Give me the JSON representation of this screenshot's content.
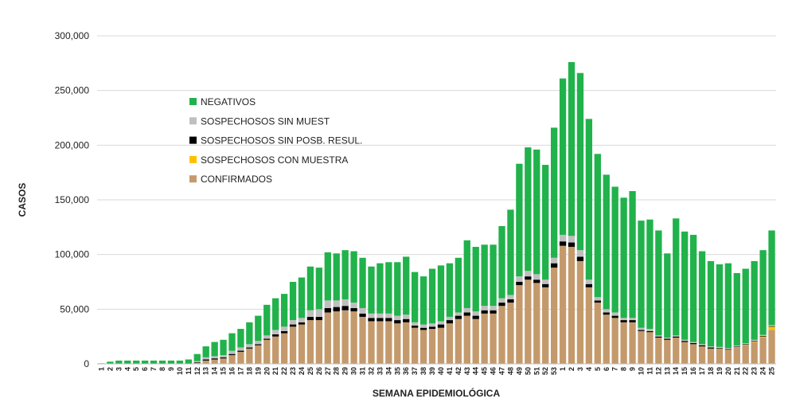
{
  "chart_data": {
    "type": "stacked_bar",
    "x_label": "SEMANA EPIDEMIOLÓGICA",
    "y_label": "CASOS",
    "categories": [
      "1",
      "2",
      "3",
      "4",
      "5",
      "6",
      "7",
      "8",
      "9",
      "10",
      "11",
      "12",
      "13",
      "14",
      "15",
      "16",
      "17",
      "18",
      "19",
      "20",
      "21",
      "22",
      "23",
      "24",
      "25",
      "26",
      "27",
      "28",
      "29",
      "30",
      "31",
      "32",
      "33",
      "34",
      "35",
      "36",
      "37",
      "38",
      "39",
      "40",
      "41",
      "42",
      "43",
      "44",
      "45",
      "46",
      "47",
      "48",
      "49",
      "50",
      "51",
      "52",
      "53",
      "1",
      "2",
      "3",
      "4",
      "5",
      "6",
      "7",
      "8",
      "9",
      "10",
      "11",
      "12",
      "13",
      "14",
      "15",
      "16",
      "17",
      "18",
      "19",
      "20",
      "21",
      "22",
      "23",
      "24",
      "25"
    ],
    "series": [
      {
        "name": "NEGATIVOS",
        "color": "#21b24b",
        "values": [
          500,
          1900,
          2900,
          2900,
          2900,
          2900,
          2900,
          2900,
          2900,
          2900,
          3800,
          6500,
          10000,
          13000,
          14000,
          16000,
          17000,
          20000,
          23000,
          28000,
          29000,
          30000,
          35000,
          37000,
          40000,
          38000,
          44000,
          43000,
          45000,
          47000,
          46000,
          43000,
          46000,
          47000,
          49000,
          53000,
          46000,
          44000,
          50000,
          51000,
          49000,
          50000,
          62000,
          59000,
          56000,
          56000,
          66000,
          78000,
          103000,
          113000,
          114000,
          105000,
          119000,
          143000,
          159000,
          162000,
          147000,
          131000,
          123000,
          115000,
          110000,
          116000,
          98000,
          100000,
          96000,
          77000,
          107000,
          99000,
          98000,
          85000,
          78000,
          75500,
          77500,
          66200,
          68100,
          72000,
          77500,
          86500
        ]
      },
      {
        "name": "SOSPECHOSOS SIN MUEST",
        "color": "#bfbfbf",
        "values": [
          0,
          0,
          0,
          0,
          0,
          0,
          0,
          0,
          0,
          0,
          0,
          1000,
          2000,
          2000,
          2000,
          3000,
          3000,
          3000,
          3000,
          3000,
          4000,
          4000,
          4000,
          4000,
          6000,
          7000,
          7000,
          6000,
          6000,
          5000,
          5000,
          4000,
          4000,
          4000,
          4000,
          4000,
          3000,
          3000,
          3000,
          3000,
          3000,
          3000,
          4000,
          4000,
          4000,
          4000,
          4000,
          4000,
          5000,
          5000,
          5000,
          4000,
          5000,
          6000,
          6000,
          6000,
          4000,
          3000,
          3000,
          3000,
          2000,
          2000,
          2000,
          2000,
          1000,
          1000,
          1000,
          1000,
          1000,
          1000,
          1000,
          1000,
          1000,
          1000,
          1000,
          1000,
          1000,
          1000
        ]
      },
      {
        "name": "SOSPECHOSOS SIN POSB. RESUL.",
        "color": "#000000",
        "values": [
          0,
          0,
          0,
          0,
          0,
          0,
          0,
          0,
          0,
          0,
          0,
          500,
          1000,
          1000,
          1000,
          1000,
          1000,
          1000,
          1000,
          1000,
          2000,
          2000,
          2000,
          2000,
          3000,
          3000,
          4000,
          4000,
          4000,
          3000,
          3000,
          3000,
          3000,
          3000,
          3000,
          3000,
          2000,
          2000,
          2000,
          3000,
          3000,
          3000,
          3000,
          3000,
          3000,
          3000,
          3000,
          3000,
          3000,
          3000,
          3000,
          3000,
          4000,
          4000,
          4000,
          4000,
          3000,
          2000,
          2000,
          2000,
          2000,
          2000,
          1000,
          1000,
          1000,
          1000,
          1000,
          1000,
          1000,
          1000,
          1000,
          500,
          500,
          500,
          500,
          500,
          500,
          500
        ]
      },
      {
        "name": "SOSPECHOSOS CON MUESTRA",
        "color": "#ffc000",
        "values": [
          0,
          0,
          0,
          0,
          0,
          0,
          0,
          0,
          0,
          0,
          0,
          0,
          0,
          0,
          0,
          0,
          0,
          0,
          0,
          0,
          0,
          0,
          0,
          0,
          0,
          0,
          0,
          0,
          0,
          0,
          0,
          0,
          0,
          0,
          0,
          0,
          0,
          0,
          0,
          0,
          0,
          0,
          0,
          0,
          0,
          0,
          0,
          0,
          0,
          0,
          0,
          0,
          0,
          0,
          0,
          0,
          0,
          0,
          0,
          0,
          0,
          0,
          0,
          0,
          0,
          0,
          0,
          0,
          0,
          0,
          0,
          0,
          0,
          300,
          400,
          500,
          1000,
          3000
        ]
      },
      {
        "name": "CONFIRMADOS",
        "color": "#c49a6c",
        "values": [
          0,
          100,
          100,
          100,
          100,
          100,
          100,
          100,
          100,
          100,
          200,
          1000,
          3000,
          4000,
          5000,
          8000,
          11000,
          14000,
          17000,
          22000,
          25000,
          28000,
          34000,
          36000,
          40000,
          40000,
          47000,
          48000,
          49000,
          48000,
          43000,
          39000,
          39000,
          39000,
          37000,
          38000,
          33000,
          31000,
          32000,
          33000,
          37000,
          41000,
          44000,
          41000,
          46000,
          46000,
          53000,
          56000,
          72000,
          77000,
          74000,
          70000,
          88000,
          108000,
          107000,
          94000,
          70000,
          56000,
          45000,
          42000,
          38000,
          38000,
          30000,
          29000,
          24000,
          22000,
          24000,
          20000,
          18000,
          16000,
          14000,
          14000,
          13000,
          15000,
          17000,
          20000,
          24000,
          31000
        ]
      }
    ],
    "ylim": [
      0,
      300000
    ],
    "yticks": [
      0,
      {
        "value": 50000,
        "label": "50,000"
      },
      {
        "value": 100000,
        "label": "100,000"
      },
      {
        "value": 150000,
        "label": "150,000"
      },
      {
        "value": 200000,
        "label": "200,000"
      },
      {
        "value": 250000,
        "label": "250,000"
      },
      {
        "value": 300000,
        "label": "300,000"
      }
    ],
    "grid": true,
    "legend": "upper left"
  }
}
